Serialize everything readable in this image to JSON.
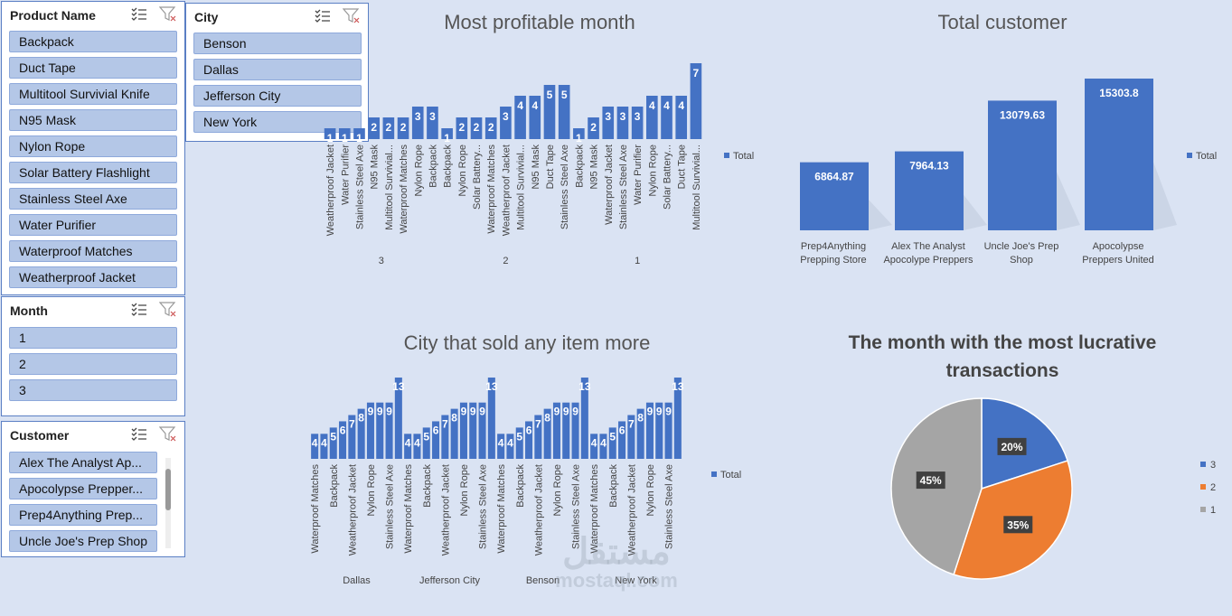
{
  "slicers": {
    "product": {
      "title": "Product Name",
      "items": [
        "Backpack",
        "Duct Tape",
        "Multitool Survivial Knife",
        "N95 Mask",
        "Nylon Rope",
        "Solar Battery Flashlight",
        "Stainless Steel Axe",
        "Water Purifier",
        "Waterproof Matches",
        "Weatherproof Jacket"
      ]
    },
    "city": {
      "title": "City",
      "items": [
        "Benson",
        "Dallas",
        "Jefferson City",
        "New York"
      ]
    },
    "month": {
      "title": "Month",
      "items": [
        "1",
        "2",
        "3"
      ]
    },
    "customer": {
      "title": "Customer",
      "items": [
        "Alex The Analyst Ap...",
        "Apocolypse Prepper...",
        "Prep4Anything Prep...",
        "Uncle Joe's Prep Shop"
      ]
    }
  },
  "chart_data": [
    {
      "id": "profit",
      "type": "bar",
      "title": "Most profitable month",
      "legend": "Total",
      "legend_position": "right",
      "color": "#4472c4",
      "groups": [
        {
          "label": "3",
          "categories": [
            "Weatherproof Jacket",
            "Water Purifier",
            "Stainless Steel Axe",
            "N95 Mask",
            "Multitool Survivial...",
            "Waterproof Matches",
            "Nylon Rope",
            "Backpack"
          ],
          "values": [
            1,
            1,
            1,
            2,
            2,
            2,
            3,
            3
          ]
        },
        {
          "label": "2",
          "categories": [
            "Backpack",
            "Nylon Rope",
            "Solar Battery...",
            "Waterproof Matches",
            "Weatherproof Jacket",
            "Multitool Survivial...",
            "N95 Mask",
            "Duct Tape",
            "Stainless Steel Axe"
          ],
          "values": [
            1,
            2,
            2,
            2,
            3,
            4,
            4,
            5,
            5
          ]
        },
        {
          "label": "1",
          "categories": [
            "Backpack",
            "N95 Mask",
            "Waterproof Jacket",
            "Stainless Steel Axe",
            "Water Purifier",
            "Nylon Rope",
            "Solar Battery...",
            "Duct Tape",
            "Multitool Survivial..."
          ],
          "values": [
            1,
            2,
            3,
            3,
            3,
            4,
            4,
            4,
            7
          ]
        }
      ]
    },
    {
      "id": "customer",
      "type": "bar",
      "title": "Total  customer",
      "legend": "Total",
      "legend_position": "right",
      "color": "#4472c4",
      "categories": [
        [
          "Prep4Anything",
          "Prepping Store"
        ],
        [
          "Alex The Analyst",
          "Apocolype Preppers"
        ],
        [
          "Uncle Joe's Prep",
          "Shop"
        ],
        [
          "Apocolypse",
          "Preppers United"
        ]
      ],
      "values": [
        6864.87,
        7964.13,
        13079.63,
        15303.8
      ],
      "value_labels": [
        "6864.87",
        "7964.13",
        "13079.63",
        "15303.8"
      ]
    },
    {
      "id": "city",
      "type": "bar",
      "title": "City that sold any item more",
      "legend": "Total",
      "legend_position": "right",
      "color": "#4472c4",
      "groups": [
        {
          "label": "Dallas",
          "categories": [
            "Waterproof Matches",
            "",
            "Backpack",
            "",
            "Weatherproof Jacket",
            "",
            "Nylon Rope",
            "",
            "Stainless Steel Axe",
            ""
          ],
          "values": [
            4,
            4,
            5,
            6,
            7,
            8,
            9,
            9,
            9,
            13
          ]
        },
        {
          "label": "Jefferson City",
          "categories": [
            "Waterproof Matches",
            "",
            "Backpack",
            "",
            "Weatherproof Jacket",
            "",
            "Nylon Rope",
            "",
            "Stainless Steel Axe",
            ""
          ],
          "values": [
            4,
            4,
            5,
            6,
            7,
            8,
            9,
            9,
            9,
            13
          ]
        },
        {
          "label": "Benson",
          "categories": [
            "Waterproof Matches",
            "",
            "Backpack",
            "",
            "Weatherproof Jacket",
            "",
            "Nylon Rope",
            "",
            "Stainless Steel Axe",
            ""
          ],
          "values": [
            4,
            4,
            5,
            6,
            7,
            8,
            9,
            9,
            9,
            13
          ]
        },
        {
          "label": "New York",
          "categories": [
            "Waterproof Matches",
            "",
            "Backpack",
            "",
            "Weatherproof Jacket",
            "",
            "Nylon Rope",
            "",
            "Stainless Steel Axe",
            ""
          ],
          "values": [
            4,
            4,
            5,
            6,
            7,
            8,
            9,
            9,
            9,
            13
          ]
        }
      ]
    },
    {
      "id": "month",
      "type": "pie",
      "title": "The month with the most lucrative transactions",
      "title_lines": [
        "The month with the most lucrative",
        "transactions"
      ],
      "legend_position": "right",
      "slices": [
        {
          "name": "3",
          "value": 20,
          "label": "20%",
          "color": "#4472c4"
        },
        {
          "name": "2",
          "value": 35,
          "label": "35%",
          "color": "#ed7d31"
        },
        {
          "name": "1",
          "value": 45,
          "label": "45%",
          "color": "#a5a5a5"
        }
      ]
    }
  ],
  "watermark": {
    "arabic": "مستقل",
    "latin": "mostaql.com"
  }
}
